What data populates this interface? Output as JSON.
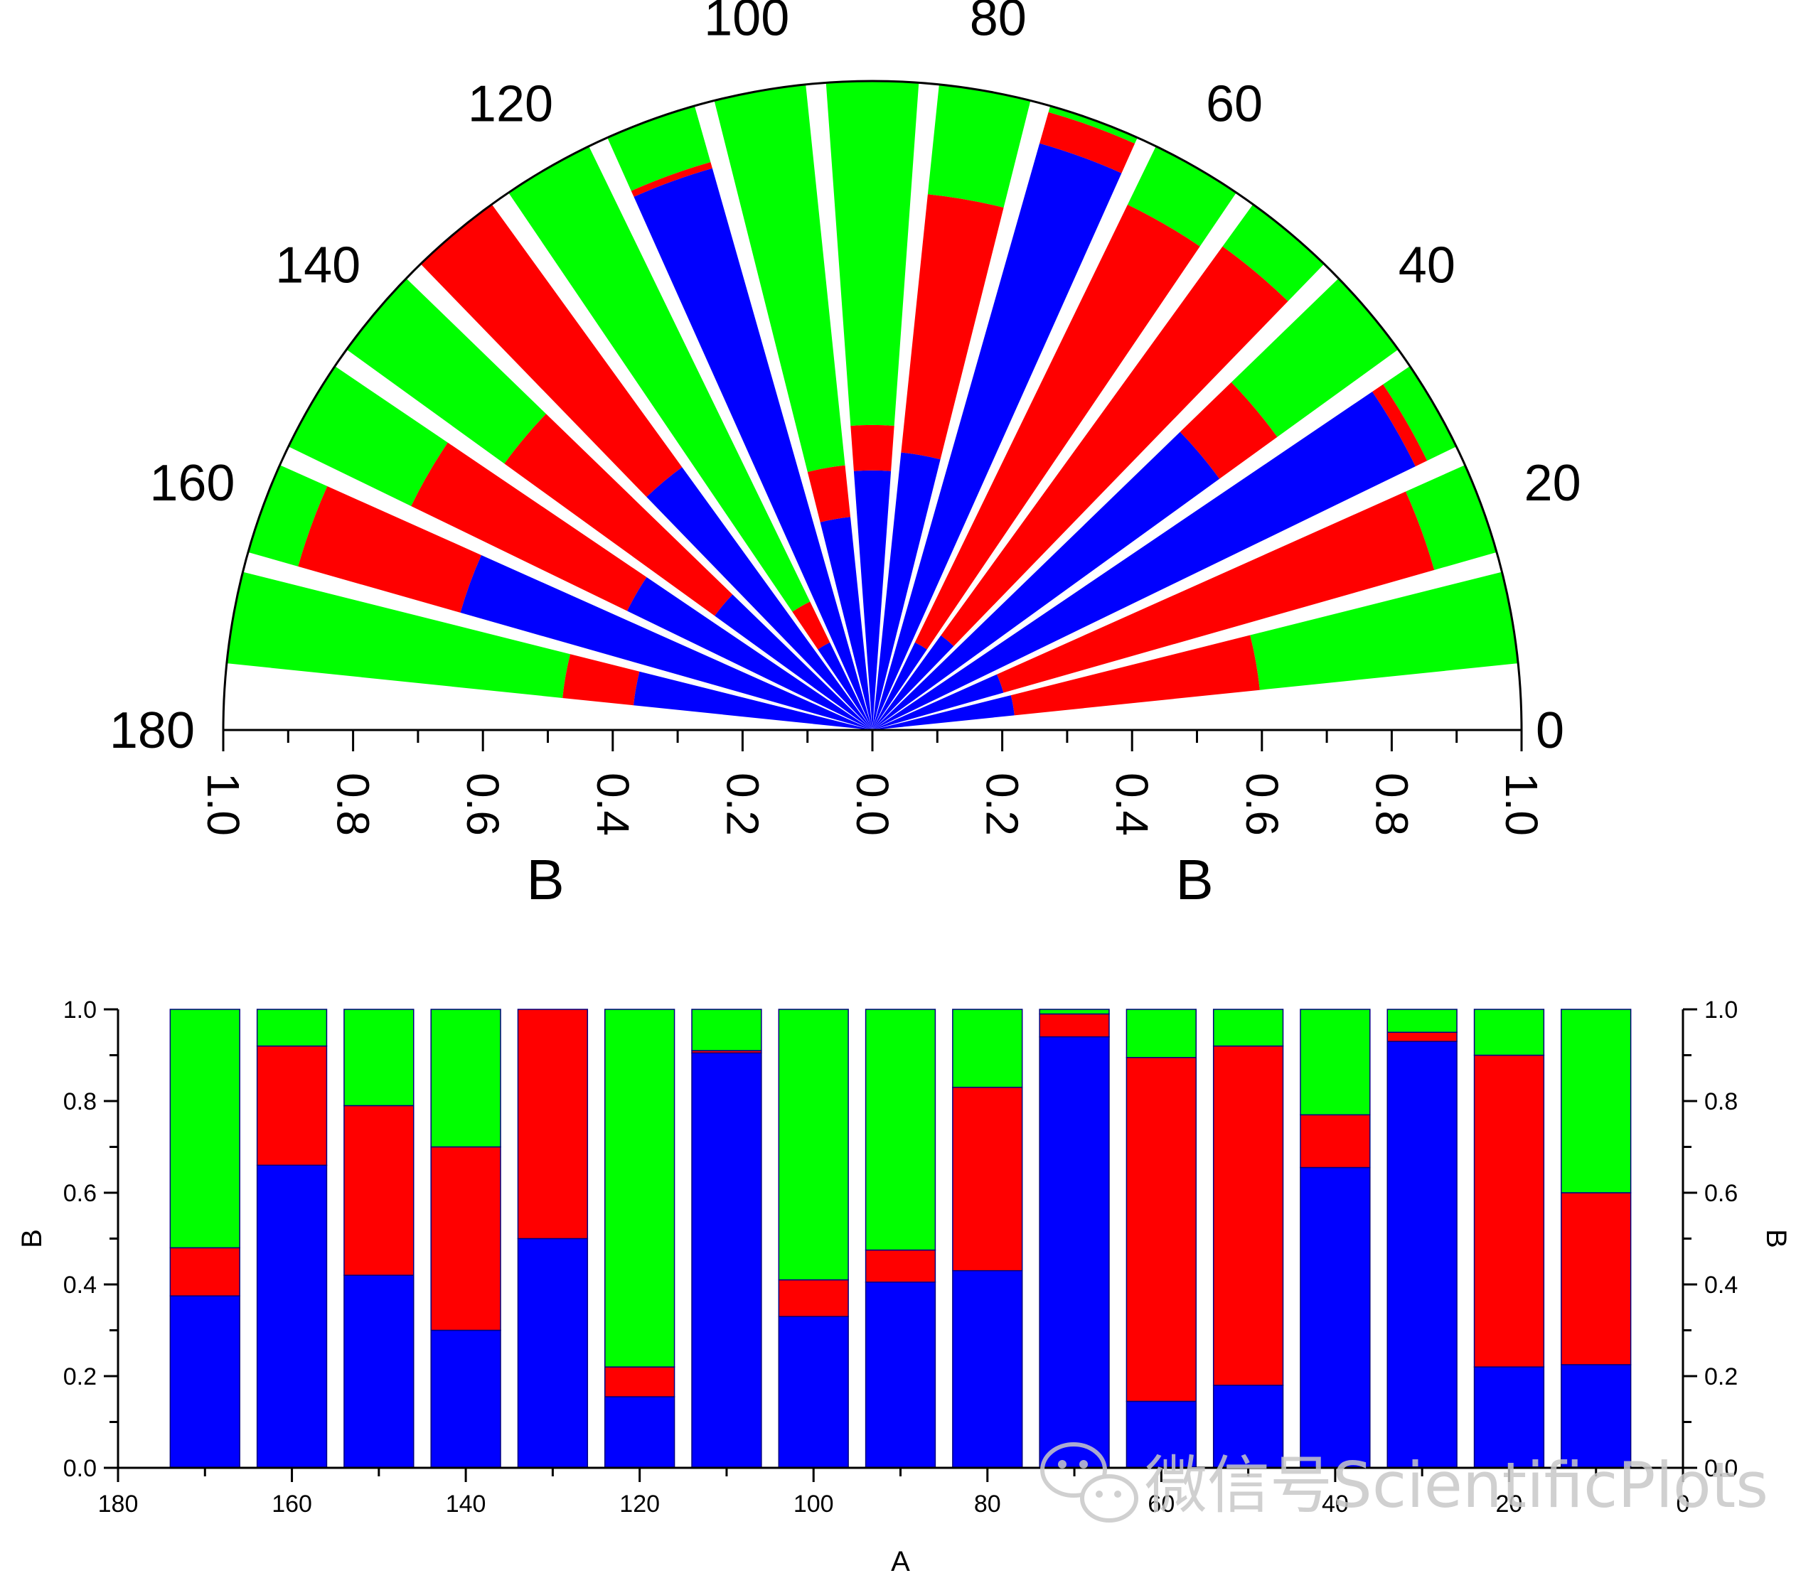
{
  "colors": {
    "series_blue": "#0000ff",
    "series_red": "#ff0000",
    "series_green": "#00ff00",
    "axis": "#000000",
    "bar_edge": "#000080",
    "watermark": "#c8c8c8"
  },
  "watermark": {
    "text": "微信号ScientificPlots",
    "icon": "wechat-icon"
  },
  "chart_data": [
    {
      "type": "polar-stacked-bar",
      "title": "",
      "angle_range": [
        0,
        180
      ],
      "angle_ticks": [
        "0",
        "20",
        "40",
        "60",
        "80",
        "100",
        "120",
        "140",
        "160",
        "180"
      ],
      "radial_range": [
        0,
        1.0
      ],
      "radial_ticks_left": [
        "1.0",
        "0.8",
        "0.6",
        "0.4",
        "0.2",
        "0.0"
      ],
      "radial_ticks_right": [
        "0.2",
        "0.4",
        "0.6",
        "0.8",
        "1.0"
      ],
      "radial_label_left": "B",
      "radial_label_right": "B",
      "categories": [
        10,
        20,
        30,
        40,
        50,
        60,
        70,
        80,
        90,
        100,
        110,
        120,
        130,
        140,
        150,
        160,
        170
      ],
      "series": [
        {
          "name": "blue",
          "color": "#0000ff",
          "values": [
            0.22,
            0.21,
            0.93,
            0.66,
            0.18,
            0.15,
            0.94,
            0.43,
            0.4,
            0.33,
            0.9,
            0.15,
            0.5,
            0.3,
            0.42,
            0.66,
            0.37
          ]
        },
        {
          "name": "red",
          "color": "#ff0000",
          "values": [
            0.38,
            0.69,
            0.02,
            0.11,
            0.74,
            0.75,
            0.05,
            0.4,
            0.07,
            0.08,
            0.01,
            0.07,
            0.5,
            0.4,
            0.37,
            0.26,
            0.11
          ]
        },
        {
          "name": "green",
          "color": "#00ff00",
          "values": [
            0.4,
            0.1,
            0.05,
            0.23,
            0.08,
            0.1,
            0.01,
            0.17,
            0.53,
            0.59,
            0.09,
            0.78,
            0.0,
            0.3,
            0.21,
            0.08,
            0.52
          ]
        }
      ]
    },
    {
      "type": "bar",
      "stacked": true,
      "title": "",
      "xlabel": "A",
      "ylabel_left": "B",
      "ylabel_right": "B",
      "xlim": [
        180,
        0
      ],
      "ylim": [
        0,
        1.0
      ],
      "x_ticks": [
        "180",
        "160",
        "140",
        "120",
        "100",
        "80",
        "60",
        "40",
        "20",
        "0"
      ],
      "y_ticks": [
        "0.0",
        "0.2",
        "0.4",
        "0.6",
        "0.8",
        "1.0"
      ],
      "categories": [
        170,
        160,
        150,
        140,
        130,
        120,
        110,
        100,
        90,
        80,
        70,
        60,
        50,
        40,
        30,
        20,
        10
      ],
      "series": [
        {
          "name": "blue",
          "color": "#0000ff",
          "values": [
            0.375,
            0.66,
            0.42,
            0.3,
            0.5,
            0.155,
            0.905,
            0.33,
            0.405,
            0.43,
            0.94,
            0.145,
            0.18,
            0.655,
            0.93,
            0.22,
            0.225
          ]
        },
        {
          "name": "red",
          "color": "#ff0000",
          "values": [
            0.105,
            0.26,
            0.37,
            0.4,
            0.5,
            0.065,
            0.005,
            0.08,
            0.07,
            0.4,
            0.05,
            0.75,
            0.74,
            0.115,
            0.02,
            0.68,
            0.375
          ]
        },
        {
          "name": "green",
          "color": "#00ff00",
          "values": [
            0.52,
            0.08,
            0.21,
            0.3,
            0.0,
            0.78,
            0.09,
            0.59,
            0.525,
            0.17,
            0.01,
            0.105,
            0.08,
            0.23,
            0.05,
            0.1,
            0.4
          ]
        }
      ]
    }
  ]
}
